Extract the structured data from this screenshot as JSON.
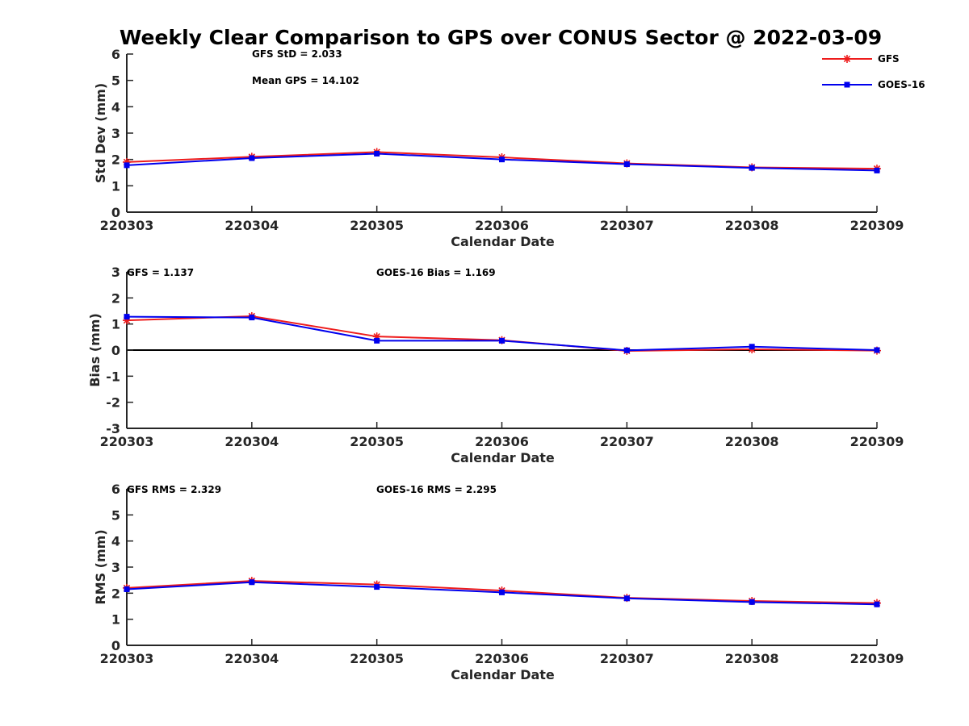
{
  "title": "Weekly Clear Comparison to GPS over CONUS Sector @ 2022-03-09",
  "colors": {
    "gfs": "#ee1c1c",
    "goes16": "#0000ee",
    "axis": "#262626",
    "zero_line": "#000000"
  },
  "legend": {
    "placement": "top-right",
    "items": [
      {
        "label": "GFS",
        "color": "#ee1c1c",
        "marker": "asterisk"
      },
      {
        "label": "GOES-16",
        "color": "#0000ee",
        "marker": "square"
      }
    ]
  },
  "chart_data": [
    {
      "type": "line",
      "title": "",
      "xlabel": "Calendar Date",
      "ylabel": "Std Dev (mm)",
      "categories": [
        "220303",
        "220304",
        "220305",
        "220306",
        "220307",
        "220308",
        "220309"
      ],
      "ylim": [
        0,
        6
      ],
      "yticks": [
        0,
        1,
        2,
        3,
        4,
        5,
        6
      ],
      "grid": false,
      "zero_line": false,
      "annotations": [
        "GFS StD = 2.033",
        "Mean GPS = 14.102"
      ],
      "series": [
        {
          "name": "GFS",
          "color": "#ee1c1c",
          "marker": "asterisk",
          "values": [
            1.9,
            2.1,
            2.28,
            2.08,
            1.85,
            1.7,
            1.65
          ]
        },
        {
          "name": "GOES-16",
          "color": "#0000ee",
          "marker": "square",
          "values": [
            1.78,
            2.05,
            2.22,
            2.0,
            1.82,
            1.68,
            1.58
          ]
        }
      ]
    },
    {
      "type": "line",
      "title": "",
      "xlabel": "Calendar Date",
      "ylabel": "Bias (mm)",
      "categories": [
        "220303",
        "220304",
        "220305",
        "220306",
        "220307",
        "220308",
        "220309"
      ],
      "ylim": [
        -3,
        3
      ],
      "yticks": [
        -3,
        -2,
        -1,
        0,
        1,
        2,
        3
      ],
      "grid": false,
      "zero_line": true,
      "annotations": [
        "GFS = 1.137",
        "GOES-16 Bias  = 1.169"
      ],
      "series": [
        {
          "name": "GFS",
          "color": "#ee1c1c",
          "marker": "asterisk",
          "values": [
            1.14,
            1.3,
            0.52,
            0.38,
            -0.03,
            0.03,
            -0.02
          ]
        },
        {
          "name": "GOES-16",
          "color": "#0000ee",
          "marker": "square",
          "values": [
            1.28,
            1.25,
            0.36,
            0.36,
            -0.01,
            0.13,
            0.0
          ]
        }
      ]
    },
    {
      "type": "line",
      "title": "",
      "xlabel": "Calendar Date",
      "ylabel": "RMS (mm)",
      "categories": [
        "220303",
        "220304",
        "220305",
        "220306",
        "220307",
        "220308",
        "220309"
      ],
      "ylim": [
        0,
        6
      ],
      "yticks": [
        0,
        1,
        2,
        3,
        4,
        5,
        6
      ],
      "grid": false,
      "zero_line": false,
      "annotations": [
        "GFS RMS = 2.329",
        "GOES-16 RMS = 2.295"
      ],
      "series": [
        {
          "name": "GFS",
          "color": "#ee1c1c",
          "marker": "asterisk",
          "values": [
            2.2,
            2.47,
            2.33,
            2.1,
            1.82,
            1.7,
            1.62
          ]
        },
        {
          "name": "GOES-16",
          "color": "#0000ee",
          "marker": "square",
          "values": [
            2.15,
            2.42,
            2.24,
            2.03,
            1.8,
            1.66,
            1.57
          ]
        }
      ]
    }
  ]
}
